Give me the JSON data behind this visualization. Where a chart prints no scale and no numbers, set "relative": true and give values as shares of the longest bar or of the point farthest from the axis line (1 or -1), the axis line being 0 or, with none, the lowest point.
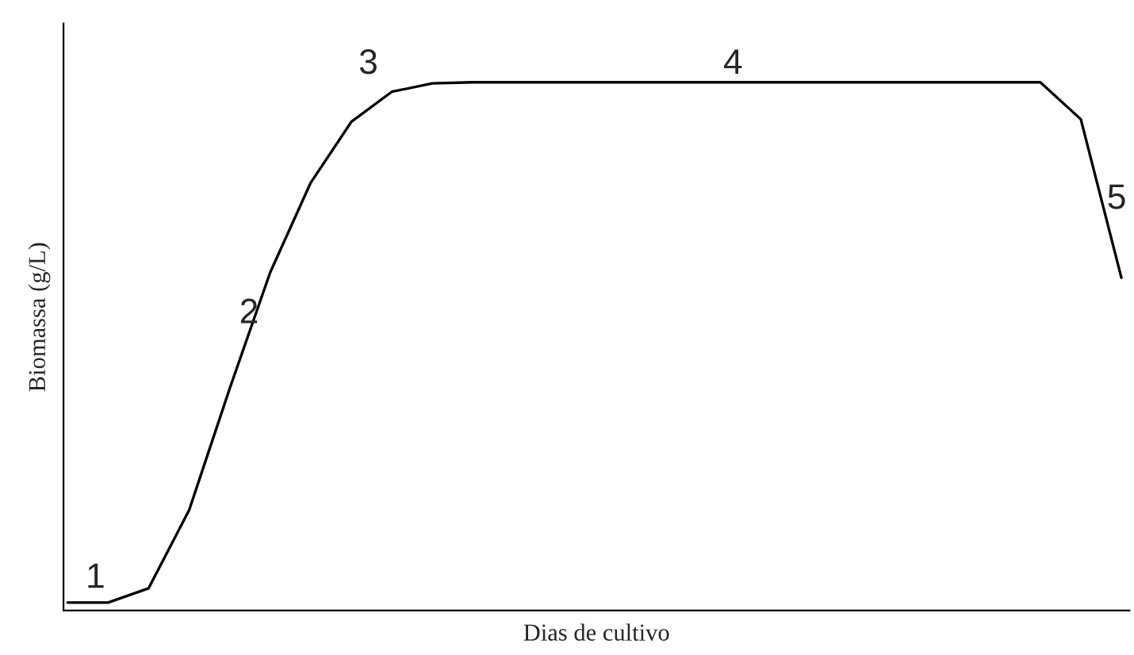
{
  "chart_data": {
    "type": "line",
    "relative": true,
    "xlabel": "Dias de cultivo",
    "ylabel": "Biomassa (g/L)",
    "categories": [
      null,
      null,
      null,
      null,
      null,
      null,
      null,
      null,
      null,
      null,
      null,
      null,
      null,
      null,
      null,
      null,
      null,
      null,
      null,
      null,
      null,
      null,
      null,
      null,
      null,
      null,
      null
    ],
    "series": [
      {
        "color": "#000000",
        "values": [
          0.015,
          0.015,
          0.042,
          0.19,
          0.42,
          0.64,
          0.81,
          0.925,
          0.982,
          0.998,
          1,
          1,
          1,
          1,
          1,
          1,
          1,
          1,
          1,
          1,
          1,
          1,
          1,
          1,
          1,
          0.93,
          0.63
        ]
      }
    ],
    "annotations": [
      "1",
      "2",
      "3",
      "4",
      "5"
    ],
    "grid": false,
    "legend": false,
    "marker": "none",
    "line_style": "solid",
    "tick_labels": false
  }
}
